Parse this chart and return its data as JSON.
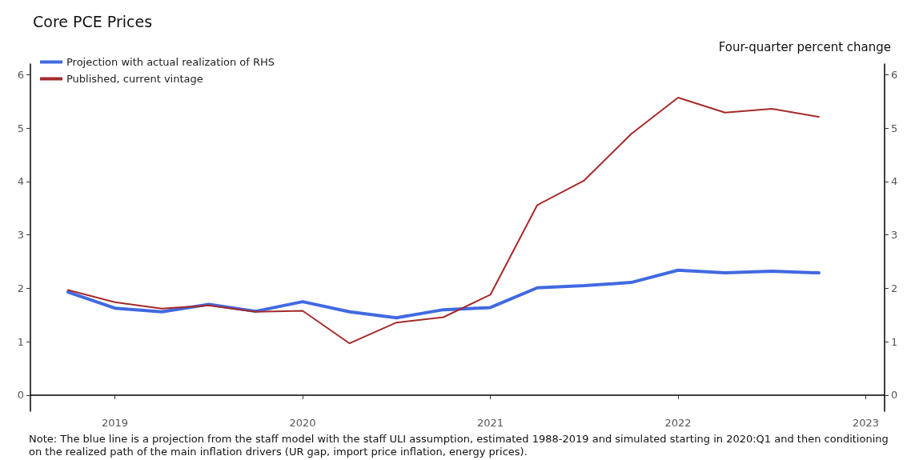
{
  "chart_data": {
    "type": "line",
    "title": "Core PCE Prices",
    "y2label": "Four-quarter percent change",
    "x": [
      2018.75,
      2019,
      2019.25,
      2019.5,
      2019.75,
      2020,
      2020.25,
      2020.5,
      2020.75,
      2021,
      2021.25,
      2021.5,
      2021.75,
      2022,
      2022.25,
      2022.5,
      2022.75
    ],
    "series": [
      {
        "name": "Projection with actual realization of RHS",
        "color": "#4169e1",
        "values": [
          1.93,
          1.63,
          1.56,
          1.7,
          1.57,
          1.75,
          1.56,
          1.45,
          1.6,
          1.64,
          2.01,
          2.05,
          2.11,
          2.34,
          2.29,
          2.32,
          2.29
        ]
      },
      {
        "name": "Published, current vintage",
        "color": "#a52a2a",
        "values": [
          1.97,
          1.74,
          1.62,
          1.68,
          1.56,
          1.58,
          0.97,
          1.36,
          1.46,
          1.88,
          3.56,
          4.02,
          4.89,
          5.57,
          5.29,
          5.36,
          5.21
        ]
      }
    ],
    "xlim": [
      2018.55,
      2023.1
    ],
    "xticks": [
      2019,
      2020,
      2021,
      2022,
      2023
    ],
    "ylim": [
      -0.3,
      6.2
    ],
    "yticks": [
      0,
      1,
      2,
      3,
      4,
      5,
      6
    ],
    "y2lim": [
      -0.3,
      6.2
    ],
    "y2ticks": [
      0,
      1,
      2,
      3,
      4,
      5,
      6
    ],
    "grid": false,
    "legend": "top left",
    "marker": "none",
    "line_style": "solid",
    "annotations": [
      "Note: The blue line is a projection from the staff model with the staff ULI assumption, estimated 1988-2019 and simulated starting in 2020:Q1 and then conditioning on the realized path of the main inflation drivers (UR gap, import price inflation, energy prices)."
    ]
  }
}
